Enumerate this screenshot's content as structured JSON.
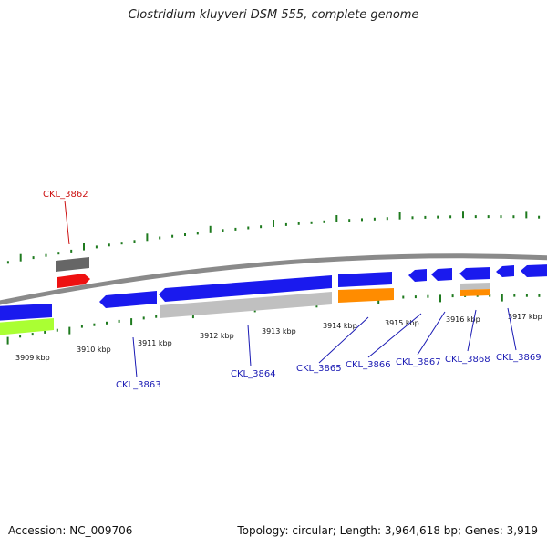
{
  "title": "Clostridium kluyveri DSM 555, complete genome",
  "footer": {
    "accession": "Accession: NC_009706",
    "summary": "Topology: circular; Length: 3,964,618 bp; Genes: 3,919"
  },
  "colors": {
    "blue": "#1a1aee",
    "red": "#ee1111",
    "dark_gray": "#666666",
    "light_gray": "#c0c0c0",
    "orange": "#ff8c00",
    "lime": "#aaff33",
    "tick_green": "#1e7a1e",
    "label_blue": "#1a1ab4",
    "label_red": "#cc1111",
    "backbone": "#8a8a8a"
  },
  "scale_labels": [
    "3909 kbp",
    "3910 kbp",
    "3911 kbp",
    "3912 kbp",
    "3913 kbp",
    "3914 kbp",
    "3915 kbp",
    "3916 kbp",
    "3917 kbp"
  ],
  "gene_labels": [
    "CKL_3862",
    "CKL_3863",
    "CKL_3864",
    "CKL_3865",
    "CKL_3866",
    "CKL_3867",
    "CKL_3868",
    "CKL_3869"
  ]
}
